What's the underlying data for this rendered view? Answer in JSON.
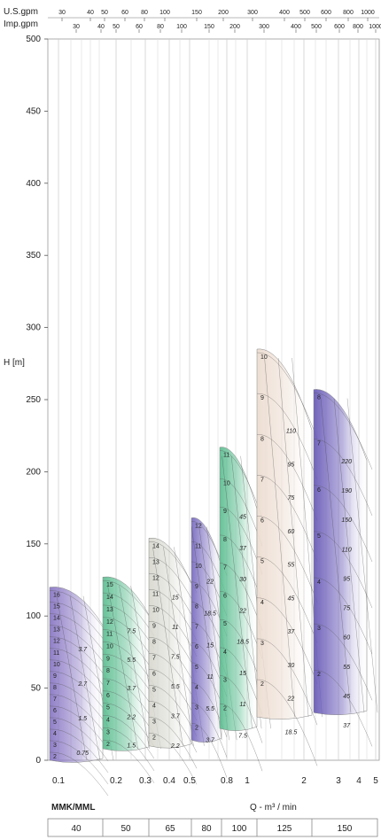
{
  "chart_data": {
    "type": "area",
    "title": "",
    "ylabel": "H [m]",
    "xlabel": "Q - m³ / min",
    "ylim": [
      0,
      500
    ],
    "y_ticks": [
      0,
      50,
      100,
      150,
      200,
      250,
      300,
      350,
      400,
      450,
      500
    ],
    "x_ticks": [
      "0.1",
      "0.2",
      "0.3",
      "0.4",
      "0.5",
      "0.8",
      "1",
      "2",
      "3",
      "4",
      "5"
    ],
    "us_gpm_label": "U.S.gpm",
    "us_gpm_ticks": [
      "30",
      "40",
      "50",
      "60",
      "80",
      "100",
      "150",
      "200",
      "300",
      "400",
      "500",
      "600",
      "800",
      "1000"
    ],
    "imp_gpm_label": "Imp.gpm",
    "imp_gpm_ticks": [
      "30",
      "40",
      "50",
      "60",
      "80",
      "100",
      "150",
      "200",
      "300",
      "400",
      "500",
      "600",
      "800",
      "1000"
    ],
    "model_label": "MMK/MML",
    "series": [
      {
        "name": "40",
        "color": "#8a78c4",
        "top_h": 120,
        "bottom_h": 0,
        "stages": [
          "16",
          "15",
          "14",
          "13",
          "12",
          "11",
          "10",
          "9",
          "8",
          "7",
          "6",
          "5",
          "4",
          "3",
          "2"
        ],
        "powers": [
          "3.7",
          "2.7",
          "1.5",
          "0.75"
        ]
      },
      {
        "name": "50",
        "color": "#5fbf93",
        "top_h": 127,
        "bottom_h": 8,
        "stages": [
          "15",
          "14",
          "13",
          "12",
          "11",
          "10",
          "9",
          "8",
          "7",
          "6",
          "5",
          "4",
          "3",
          "2"
        ],
        "powers": [
          "7.5",
          "5.5",
          "3.7",
          "2.2",
          "1.5"
        ]
      },
      {
        "name": "65",
        "color": "#d8d8d0",
        "top_h": 154,
        "bottom_h": 10,
        "stages": [
          "14",
          "13",
          "12",
          "11",
          "10",
          "9",
          "8",
          "7",
          "6",
          "5",
          "4",
          "3",
          "2"
        ],
        "powers": [
          "15",
          "11",
          "7.5",
          "5.5",
          "3.7",
          "2.2"
        ]
      },
      {
        "name": "80",
        "color": "#7a6cc0",
        "top_h": 168,
        "bottom_h": 14,
        "stages": [
          "12",
          "11",
          "10",
          "9",
          "8",
          "7",
          "6",
          "5",
          "4",
          "3",
          "2"
        ],
        "powers": [
          "22",
          "18.5",
          "15",
          "11",
          "5.5",
          "3.7"
        ]
      },
      {
        "name": "100",
        "color": "#5fbf93",
        "top_h": 217,
        "bottom_h": 22,
        "stages": [
          "11",
          "10",
          "9",
          "8",
          "7",
          "6",
          "5",
          "4",
          "3",
          "2"
        ],
        "powers": [
          "45",
          "37",
          "30",
          "22",
          "18.5",
          "15",
          "11",
          "7.5"
        ]
      },
      {
        "name": "125",
        "color": "#ecdcd0",
        "top_h": 285,
        "bottom_h": 30,
        "stages": [
          "10",
          "9",
          "8",
          "7",
          "6",
          "5",
          "4",
          "3",
          "2"
        ],
        "powers": [
          "110",
          "95",
          "75",
          "60",
          "55",
          "45",
          "37",
          "30",
          "22",
          "18.5"
        ]
      },
      {
        "name": "150",
        "color": "#6a5cb8",
        "top_h": 257,
        "bottom_h": 33,
        "stages": [
          "8",
          "7",
          "6",
          "5",
          "4",
          "3",
          "2"
        ],
        "powers": [
          "220",
          "190",
          "150",
          "110",
          "95",
          "75",
          "60",
          "55",
          "45",
          "37"
        ]
      }
    ]
  }
}
